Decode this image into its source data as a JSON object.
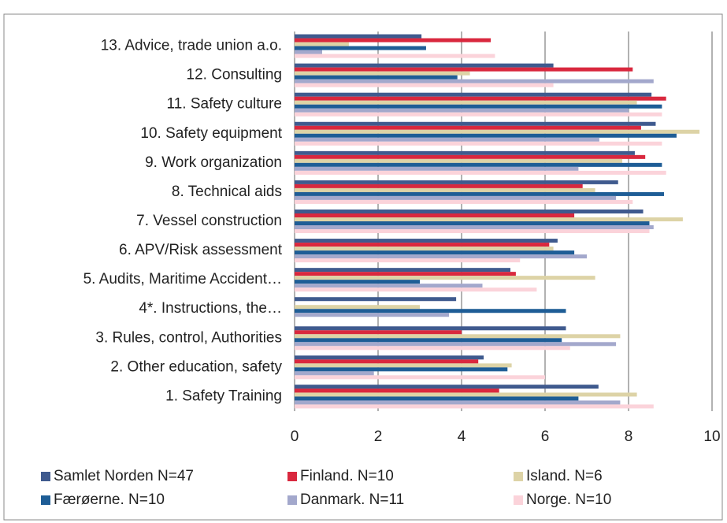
{
  "chart_data": {
    "type": "bar",
    "orientation": "horizontal",
    "categories": [
      "13. Advice, trade union a.o.",
      "12. Consulting",
      "11. Safety culture",
      "10. Safety equipment",
      "9. Work organization",
      "8. Technical aids",
      "7. Vessel construction",
      "6. APV/Risk assessment",
      "5. Audits, Maritime Accident…",
      "4*. Instructions, the…",
      "3. Rules, control, Authorities",
      "2. Other education, safety",
      "1. Safety Training"
    ],
    "series": [
      {
        "name": "Samlet Norden N=47",
        "color": "#3f5a8e",
        "values": [
          3.04,
          6.2,
          8.55,
          8.65,
          8.15,
          7.75,
          8.35,
          6.3,
          5.17,
          3.87,
          6.5,
          4.53,
          7.28
        ]
      },
      {
        "name": "Finland. N=10",
        "color": "#d9283e",
        "values": [
          4.7,
          8.1,
          8.9,
          8.3,
          8.4,
          6.9,
          6.7,
          6.1,
          5.3,
          null,
          4.0,
          4.4,
          4.9
        ]
      },
      {
        "name": "Island. N=6",
        "color": "#ddd3a6",
        "values": [
          1.3,
          4.2,
          8.2,
          9.7,
          7.85,
          7.2,
          9.3,
          6.2,
          7.2,
          3.0,
          7.8,
          5.2,
          8.2
        ]
      },
      {
        "name": "Færøerne. N=10",
        "color": "#1e5d96",
        "values": [
          3.15,
          3.9,
          8.8,
          9.15,
          8.8,
          8.85,
          8.5,
          6.7,
          3.0,
          6.5,
          6.4,
          5.1,
          6.8
        ]
      },
      {
        "name": "Danmark. N=11",
        "color": "#a3a8cc",
        "values": [
          0.66,
          8.6,
          8.0,
          7.3,
          6.8,
          7.7,
          8.6,
          7.0,
          4.5,
          3.7,
          7.7,
          1.9,
          7.8
        ]
      },
      {
        "name": "Norge. N=10",
        "color": "#fbd3da",
        "values": [
          4.8,
          6.2,
          8.8,
          8.8,
          8.9,
          8.1,
          8.5,
          5.4,
          5.8,
          null,
          6.6,
          6.0,
          8.6
        ]
      }
    ],
    "xlim": [
      0,
      10
    ],
    "xticks": [
      0,
      2,
      4,
      6,
      8,
      10
    ],
    "grid": true
  }
}
